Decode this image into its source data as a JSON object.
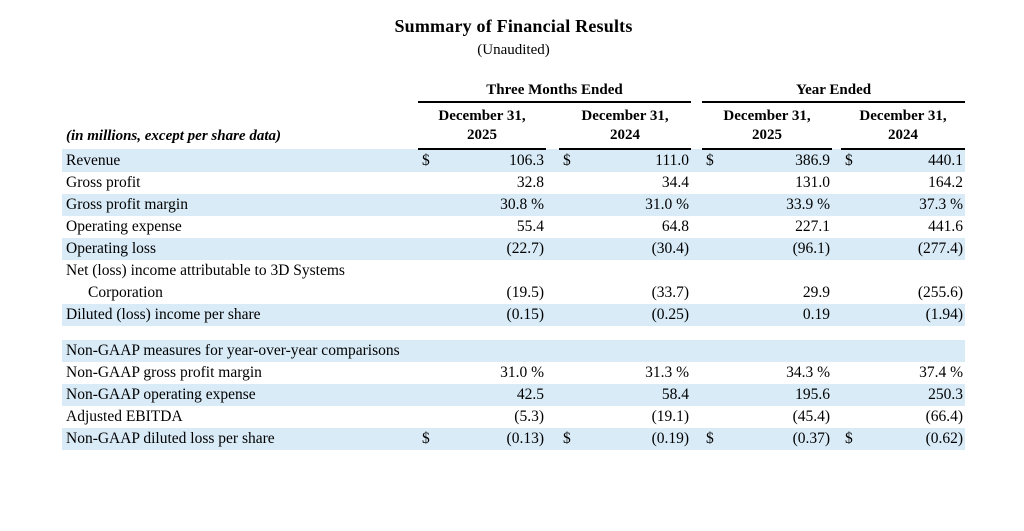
{
  "title": "Summary of Financial Results",
  "subtitle": "(Unaudited)",
  "colors": {
    "row_shade": "#d8ebf7",
    "rule": "#000000"
  },
  "table": {
    "currency_symbol": "$",
    "row_label_header": "(in millions, except per share data)",
    "col_groups": [
      {
        "label": "Three Months Ended"
      },
      {
        "label": "Year Ended"
      }
    ],
    "col_headers": [
      {
        "line1": "December 31,",
        "line2": "2025"
      },
      {
        "line1": "December 31,",
        "line2": "2024"
      },
      {
        "line1": "December 31,",
        "line2": "2025"
      },
      {
        "line1": "December 31,",
        "line2": "2024"
      }
    ],
    "rows": [
      {
        "type": "data",
        "shaded": true,
        "dollar": true,
        "label": "Revenue",
        "values": [
          "106.3",
          "111.0",
          "386.9",
          "440.1"
        ]
      },
      {
        "type": "data",
        "shaded": false,
        "dollar": false,
        "label": "Gross profit",
        "values": [
          "32.8",
          "34.4",
          "131.0",
          "164.2"
        ]
      },
      {
        "type": "data",
        "shaded": true,
        "dollar": false,
        "label": "Gross profit margin",
        "values": [
          "30.8 %",
          "31.0 %",
          "33.9 %",
          "37.3 %"
        ]
      },
      {
        "type": "data",
        "shaded": false,
        "dollar": false,
        "label": "Operating expense",
        "values": [
          "55.4",
          "64.8",
          "227.1",
          "441.6"
        ]
      },
      {
        "type": "data",
        "shaded": true,
        "dollar": false,
        "label": "Operating loss",
        "values": [
          "(22.7)",
          "(30.4)",
          "(96.1)",
          "(277.4)"
        ]
      },
      {
        "type": "data",
        "shaded": false,
        "dollar": false,
        "label": "Net (loss) income attributable to 3D Systems",
        "label2": "Corporation",
        "values": [
          "(19.5)",
          "(33.7)",
          "29.9",
          "(255.6)"
        ]
      },
      {
        "type": "data",
        "shaded": true,
        "dollar": false,
        "label": "Diluted (loss) income per share",
        "values": [
          "(0.15)",
          "(0.25)",
          "0.19",
          "(1.94)"
        ]
      },
      {
        "type": "spacer"
      },
      {
        "type": "section_header",
        "shaded": true,
        "label": "Non-GAAP measures for year-over-year comparisons"
      },
      {
        "type": "data",
        "shaded": false,
        "dollar": false,
        "label": "Non-GAAP gross profit margin",
        "values": [
          "31.0 %",
          "31.3 %",
          "34.3 %",
          "37.4 %"
        ]
      },
      {
        "type": "data",
        "shaded": true,
        "dollar": false,
        "label": "Non-GAAP operating expense",
        "values": [
          "42.5",
          "58.4",
          "195.6",
          "250.3"
        ]
      },
      {
        "type": "data",
        "shaded": false,
        "dollar": false,
        "label": "Adjusted EBITDA",
        "values": [
          "(5.3)",
          "(19.1)",
          "(45.4)",
          "(66.4)"
        ]
      },
      {
        "type": "data",
        "shaded": true,
        "dollar": true,
        "label": "Non-GAAP diluted loss per share",
        "values": [
          "(0.13)",
          "(0.19)",
          "(0.37)",
          "(0.62)"
        ]
      }
    ]
  }
}
